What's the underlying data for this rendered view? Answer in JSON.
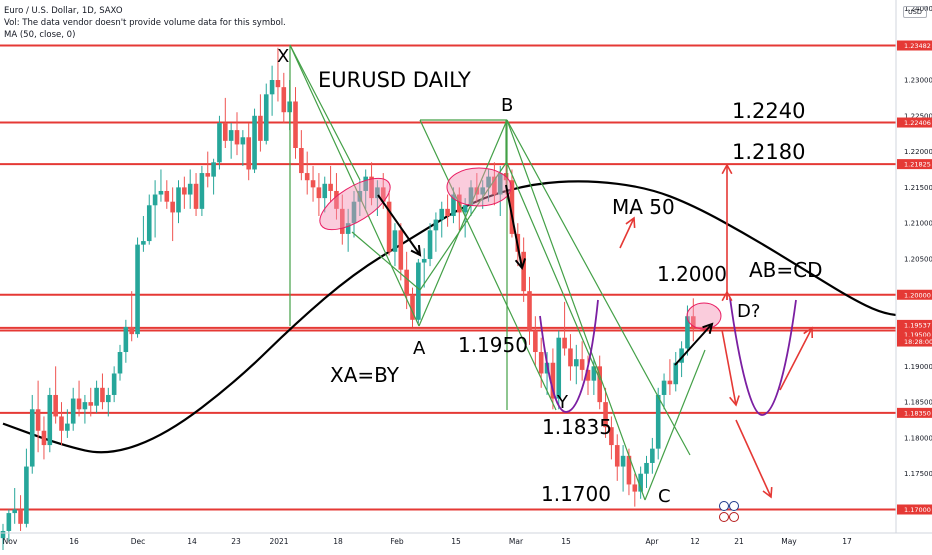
{
  "legend": {
    "symbol_line": "Euro / U.S. Dollar, 1D, SAXO",
    "volume_note": "Vol: The data vendor doesn't provide volume data for this symbol.",
    "ma_line": "MA (50, close, 0)"
  },
  "currency_label": "USD",
  "colors": {
    "up": "#26a69a",
    "down": "#ef5350",
    "level_line": "#e53935",
    "pattern_green": "#43a047",
    "ma_line": "#000000",
    "projection_purple": "#7b1fa2",
    "zone_fill": "#f48fb1"
  },
  "chart_data": {
    "type": "candlestick",
    "title": "EURUSD DAILY",
    "ylim": [
      1.1675,
      1.2365
    ],
    "x_tick_labels": [
      "Nov",
      "16",
      "Dec",
      "14",
      "23",
      "2021",
      "18",
      "Feb",
      "15",
      "Mar",
      "15",
      "Apr",
      "12",
      "21",
      "May",
      "17"
    ],
    "horizontal_levels": [
      {
        "price": 1.23482,
        "label": "1.23482"
      },
      {
        "price": 1.22406,
        "label": "1.22406"
      },
      {
        "price": 1.21825,
        "label": "1.21825"
      },
      {
        "price": 1.2,
        "label": "1.20000"
      },
      {
        "price": 1.19537,
        "label": "1.19537"
      },
      {
        "price": 1.195,
        "label": "1.19500"
      },
      {
        "price": 1.1835,
        "label": "1.18350"
      },
      {
        "price": 1.17,
        "label": "1.17000"
      }
    ],
    "countdown": "18:28:00",
    "y_ticks": [
      "1.23000",
      "1.22500",
      "1.22000",
      "1.21500",
      "1.21000",
      "1.20500",
      "1.19000",
      "1.18500",
      "1.18000",
      "1.17500"
    ],
    "top_y_label": "1.24000",
    "ma_name": "MA 50",
    "ohlc": [
      [
        1.166,
        1.168,
        1.164,
        1.167
      ],
      [
        1.167,
        1.17,
        1.1655,
        1.1695
      ],
      [
        1.1695,
        1.173,
        1.168,
        1.17
      ],
      [
        1.17,
        1.172,
        1.167,
        1.168
      ],
      [
        1.168,
        1.1785,
        1.1675,
        1.176
      ],
      [
        1.176,
        1.186,
        1.175,
        1.184
      ],
      [
        1.184,
        1.188,
        1.178,
        1.181
      ],
      [
        1.181,
        1.183,
        1.177,
        1.179
      ],
      [
        1.179,
        1.187,
        1.178,
        1.186
      ],
      [
        1.186,
        1.19,
        1.182,
        1.183
      ],
      [
        1.183,
        1.185,
        1.179,
        1.181
      ],
      [
        1.181,
        1.184,
        1.18,
        1.182
      ],
      [
        1.182,
        1.187,
        1.181,
        1.1855
      ],
      [
        1.1855,
        1.188,
        1.183,
        1.184
      ],
      [
        1.184,
        1.186,
        1.182,
        1.185
      ],
      [
        1.185,
        1.187,
        1.183,
        1.1845
      ],
      [
        1.1845,
        1.188,
        1.1835,
        1.187
      ],
      [
        1.187,
        1.189,
        1.184,
        1.185
      ],
      [
        1.185,
        1.187,
        1.183,
        1.186
      ],
      [
        1.186,
        1.19,
        1.185,
        1.189
      ],
      [
        1.189,
        1.193,
        1.188,
        1.192
      ],
      [
        1.192,
        1.1965,
        1.1905,
        1.1955
      ],
      [
        1.1955,
        1.2005,
        1.1935,
        1.1945
      ],
      [
        1.1945,
        1.208,
        1.194,
        1.207
      ],
      [
        1.207,
        1.211,
        1.206,
        1.2075
      ],
      [
        1.2075,
        1.214,
        1.207,
        1.2125
      ],
      [
        1.2125,
        1.216,
        1.208,
        1.214
      ],
      [
        1.214,
        1.2175,
        1.213,
        1.2145
      ],
      [
        1.2145,
        1.216,
        1.212,
        1.213
      ],
      [
        1.213,
        1.215,
        1.2075,
        1.2115
      ],
      [
        1.2115,
        1.216,
        1.21,
        1.215
      ],
      [
        1.215,
        1.2165,
        1.212,
        1.214
      ],
      [
        1.214,
        1.2175,
        1.212,
        1.2155
      ],
      [
        1.2155,
        1.217,
        1.211,
        1.212
      ],
      [
        1.212,
        1.218,
        1.211,
        1.217
      ],
      [
        1.217,
        1.22,
        1.215,
        1.2165
      ],
      [
        1.2165,
        1.219,
        1.214,
        1.2185
      ],
      [
        1.2185,
        1.225,
        1.2175,
        1.224
      ],
      [
        1.224,
        1.2275,
        1.2205,
        1.2215
      ],
      [
        1.2215,
        1.224,
        1.219,
        1.223
      ],
      [
        1.223,
        1.2255,
        1.2195,
        1.221
      ],
      [
        1.221,
        1.223,
        1.218,
        1.222
      ],
      [
        1.222,
        1.224,
        1.216,
        1.2175
      ],
      [
        1.2175,
        1.226,
        1.217,
        1.225
      ],
      [
        1.225,
        1.228,
        1.22,
        1.2215
      ],
      [
        1.2215,
        1.2295,
        1.221,
        1.228
      ],
      [
        1.228,
        1.232,
        1.225,
        1.23
      ],
      [
        1.23,
        1.2345,
        1.227,
        1.229
      ],
      [
        1.229,
        1.231,
        1.224,
        1.2255
      ],
      [
        1.2255,
        1.23,
        1.223,
        1.227
      ],
      [
        1.227,
        1.229,
        1.219,
        1.2205
      ],
      [
        1.2205,
        1.223,
        1.216,
        1.217
      ],
      [
        1.217,
        1.22,
        1.214,
        1.216
      ],
      [
        1.216,
        1.218,
        1.213,
        1.215
      ],
      [
        1.215,
        1.217,
        1.211,
        1.2135
      ],
      [
        1.2135,
        1.2165,
        1.2115,
        1.2155
      ],
      [
        1.2155,
        1.218,
        1.213,
        1.2145
      ],
      [
        1.2145,
        1.217,
        1.2105,
        1.212
      ],
      [
        1.212,
        1.214,
        1.207,
        1.2085
      ],
      [
        1.2085,
        1.212,
        1.206,
        1.21
      ],
      [
        1.21,
        1.2145,
        1.208,
        1.213
      ],
      [
        1.213,
        1.216,
        1.211,
        1.2145
      ],
      [
        1.2145,
        1.2175,
        1.212,
        1.2165
      ],
      [
        1.2165,
        1.2185,
        1.2125,
        1.2135
      ],
      [
        1.2135,
        1.216,
        1.211,
        1.215
      ],
      [
        1.215,
        1.217,
        1.212,
        1.213
      ],
      [
        1.213,
        1.2145,
        1.2055,
        1.206
      ],
      [
        1.206,
        1.21,
        1.204,
        1.209
      ],
      [
        1.209,
        1.21,
        1.202,
        1.2035
      ],
      [
        1.2035,
        1.206,
        1.198,
        1.2
      ],
      [
        1.2,
        1.201,
        1.1955,
        1.1965
      ],
      [
        1.1965,
        1.205,
        1.196,
        1.2045
      ],
      [
        1.2045,
        1.2065,
        1.201,
        1.205
      ],
      [
        1.205,
        1.21,
        1.204,
        1.209
      ],
      [
        1.209,
        1.2115,
        1.206,
        1.2105
      ],
      [
        1.2105,
        1.213,
        1.208,
        1.212
      ],
      [
        1.212,
        1.214,
        1.2095,
        1.211
      ],
      [
        1.211,
        1.215,
        1.21,
        1.214
      ],
      [
        1.214,
        1.215,
        1.209,
        1.2115
      ],
      [
        1.2115,
        1.2135,
        1.208,
        1.2125
      ],
      [
        1.2125,
        1.216,
        1.211,
        1.215
      ],
      [
        1.215,
        1.217,
        1.213,
        1.214
      ],
      [
        1.214,
        1.216,
        1.212,
        1.215
      ],
      [
        1.215,
        1.2175,
        1.213,
        1.2165
      ],
      [
        1.2165,
        1.2185,
        1.2125,
        1.214
      ],
      [
        1.214,
        1.218,
        1.211,
        1.217
      ],
      [
        1.217,
        1.219,
        1.214,
        1.216
      ],
      [
        1.216,
        1.2175,
        1.208,
        1.2085
      ],
      [
        1.2085,
        1.21,
        1.204,
        1.206
      ],
      [
        1.206,
        1.208,
        1.199,
        1.2005
      ],
      [
        1.2005,
        1.2025,
        1.193,
        1.195
      ],
      [
        1.195,
        1.197,
        1.19,
        1.192
      ],
      [
        1.192,
        1.194,
        1.187,
        1.189
      ],
      [
        1.189,
        1.192,
        1.186,
        1.1905
      ],
      [
        1.1905,
        1.1925,
        1.184,
        1.1855
      ],
      [
        1.1855,
        1.195,
        1.184,
        1.194
      ],
      [
        1.194,
        1.199,
        1.1915,
        1.1925
      ],
      [
        1.1925,
        1.1945,
        1.188,
        1.19
      ],
      [
        1.19,
        1.193,
        1.1875,
        1.191
      ],
      [
        1.191,
        1.1935,
        1.188,
        1.1895
      ],
      [
        1.1895,
        1.1915,
        1.186,
        1.188
      ],
      [
        1.188,
        1.191,
        1.186,
        1.19
      ],
      [
        1.19,
        1.1915,
        1.184,
        1.185
      ],
      [
        1.185,
        1.187,
        1.18,
        1.1815
      ],
      [
        1.1815,
        1.183,
        1.177,
        1.179
      ],
      [
        1.179,
        1.1805,
        1.174,
        1.176
      ],
      [
        1.176,
        1.179,
        1.1725,
        1.1775
      ],
      [
        1.1775,
        1.1785,
        1.172,
        1.1735
      ],
      [
        1.1735,
        1.175,
        1.1704,
        1.1725
      ],
      [
        1.1725,
        1.176,
        1.1715,
        1.175
      ],
      [
        1.175,
        1.1775,
        1.173,
        1.1765
      ],
      [
        1.1765,
        1.18,
        1.175,
        1.1785
      ],
      [
        1.1785,
        1.187,
        1.177,
        1.186
      ],
      [
        1.186,
        1.189,
        1.184,
        1.188
      ],
      [
        1.188,
        1.191,
        1.186,
        1.1875
      ],
      [
        1.1875,
        1.192,
        1.1865,
        1.1905
      ],
      [
        1.1905,
        1.1935,
        1.1885,
        1.1925
      ],
      [
        1.1925,
        1.1985,
        1.1915,
        1.197
      ],
      [
        1.197,
        1.1995,
        1.1935,
        1.1954
      ]
    ],
    "ma50_points": [
      [
        0,
        1.182
      ],
      [
        10,
        1.179
      ],
      [
        18,
        1.1775
      ],
      [
        28,
        1.1805
      ],
      [
        40,
        1.188
      ],
      [
        50,
        1.196
      ],
      [
        60,
        1.203
      ],
      [
        70,
        1.208
      ],
      [
        80,
        1.213
      ],
      [
        90,
        1.2155
      ],
      [
        100,
        1.216
      ],
      [
        110,
        1.215
      ],
      [
        118,
        1.2125
      ],
      [
        128,
        1.208
      ],
      [
        138,
        1.203
      ],
      [
        145,
        1.1995
      ],
      [
        150,
        1.1975
      ],
      [
        154,
        1.197
      ]
    ],
    "annotations": {
      "x_label": "X",
      "a_label": "A",
      "b_label": "B",
      "c_label": "C",
      "y_label": "Y",
      "d_label": "D?",
      "level_1_2240": "1.2240",
      "level_1_2180": "1.2180",
      "level_1_2000": "1.2000",
      "level_1_1950": "1.1950",
      "level_1_1835": "1.1835",
      "level_1_1700": "1.1700",
      "ab_cd": "AB=CD",
      "xa_by": "XA=BY",
      "ma_label": "MA 50"
    }
  }
}
